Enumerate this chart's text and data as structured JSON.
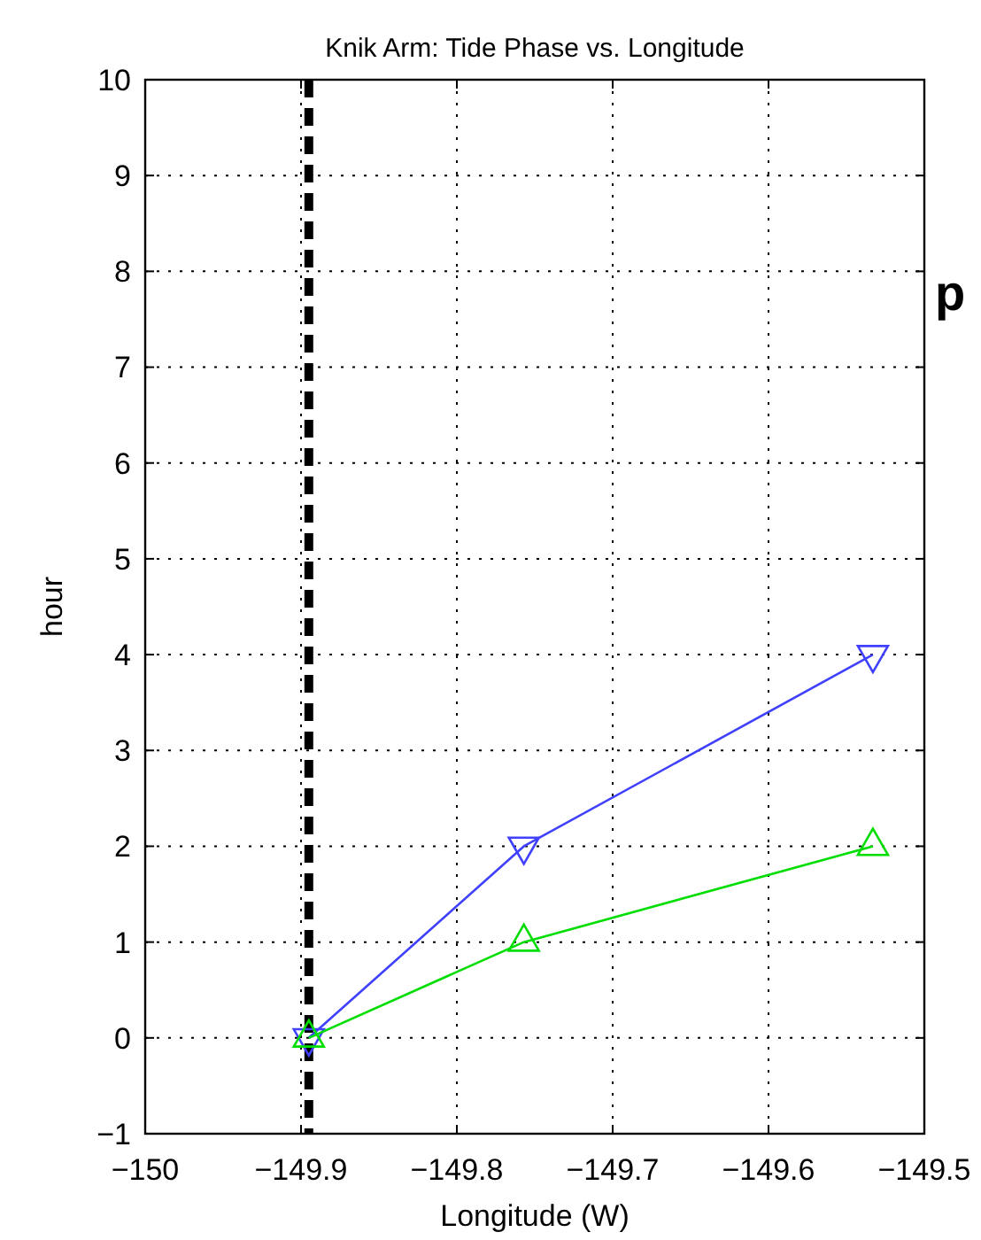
{
  "chart_data": {
    "type": "line",
    "title": "Knik Arm: Tide Phase vs. Longitude",
    "xlabel": "Longitude (W)",
    "ylabel": "hour",
    "xlim": [
      -150,
      -149.5
    ],
    "xticks": [
      -150,
      -149.9,
      -149.8,
      -149.7,
      -149.6,
      -149.5
    ],
    "ylim": [
      -1,
      10
    ],
    "yticks": [
      -1,
      0,
      1,
      2,
      3,
      4,
      5,
      6,
      7,
      8,
      9,
      10
    ],
    "grid": true,
    "series": [
      {
        "x": [
          -149.895,
          -149.757,
          -149.533
        ],
        "values": [
          0,
          2,
          4
        ],
        "color": "#4040ff",
        "marker": "triangle-down"
      },
      {
        "x": [
          -149.895,
          -149.757,
          -149.533
        ],
        "values": [
          0,
          1,
          2
        ],
        "color": "#00dd00",
        "marker": "triangle"
      }
    ],
    "ref_lines": [
      {
        "axis": "x",
        "value": -149.895,
        "color": "#000000",
        "line_style": "dashed"
      }
    ],
    "annotations": [
      "p"
    ]
  }
}
